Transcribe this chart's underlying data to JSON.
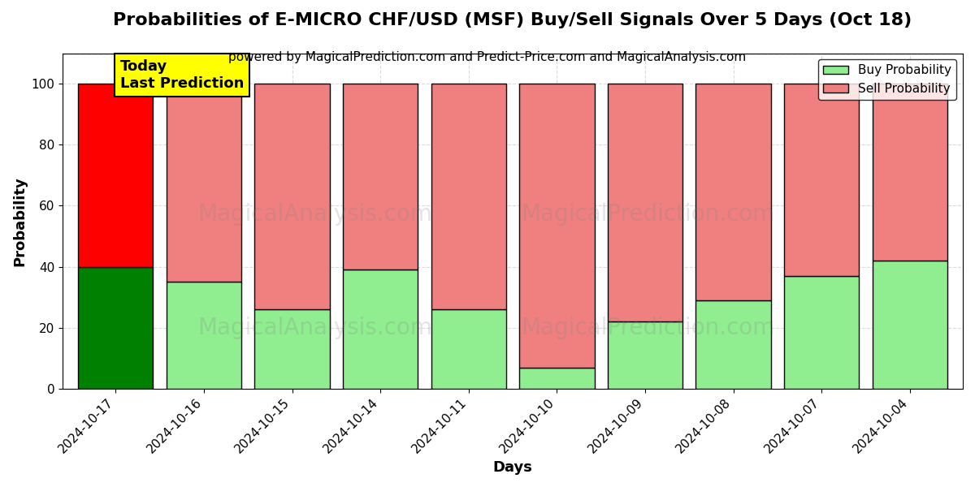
{
  "title": "Probabilities of E-MICRO CHF/USD (MSF) Buy/Sell Signals Over 5 Days (Oct 18)",
  "subtitle": "powered by MagicalPrediction.com and Predict-Price.com and MagicalAnalysis.com",
  "xlabel": "Days",
  "ylabel": "Probability",
  "legend_buy": "Buy Probability",
  "legend_sell": "Sell Probability",
  "annotation_text": "Today\nLast Prediction",
  "dates": [
    "2024-10-17",
    "2024-10-16",
    "2024-10-15",
    "2024-10-14",
    "2024-10-11",
    "2024-10-10",
    "2024-10-09",
    "2024-10-08",
    "2024-10-07",
    "2024-10-04"
  ],
  "buy_values": [
    40,
    35,
    26,
    39,
    26,
    7,
    22,
    29,
    37,
    42
  ],
  "sell_values": [
    60,
    65,
    74,
    61,
    74,
    93,
    78,
    71,
    63,
    58
  ],
  "today_index": 0,
  "buy_color_today": "#008000",
  "sell_color_today": "#FF0000",
  "buy_color_other": "#90EE90",
  "sell_color_other": "#F08080",
  "bar_edge_color": "#000000",
  "bar_edge_width": 1.0,
  "bar_width": 0.85,
  "ylim": [
    0,
    110
  ],
  "yticks": [
    0,
    20,
    40,
    60,
    80,
    100
  ],
  "dashed_line_y": 110,
  "annotation_bg_color": "#FFFF00",
  "annotation_fontsize": 13,
  "title_fontsize": 16,
  "subtitle_fontsize": 11,
  "axis_label_fontsize": 13,
  "tick_fontsize": 11,
  "legend_fontsize": 11,
  "fig_width": 12,
  "fig_height": 6,
  "dpi": 100,
  "bg_color": "#FFFFFF",
  "grid_color": "#CCCCCC",
  "grid_linestyle": "--",
  "grid_alpha": 0.7
}
